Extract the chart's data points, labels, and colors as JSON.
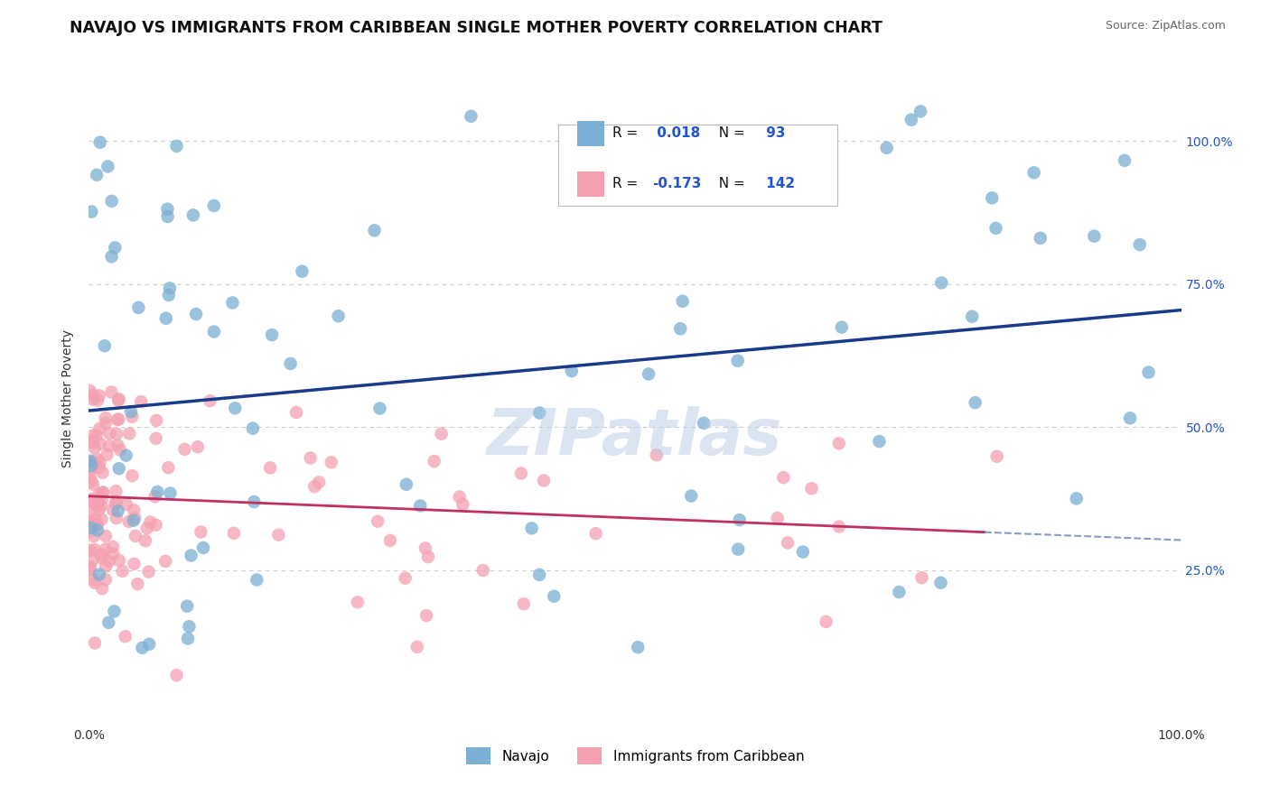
{
  "title": "NAVAJO VS IMMIGRANTS FROM CARIBBEAN SINGLE MOTHER POVERTY CORRELATION CHART",
  "source": "Source: ZipAtlas.com",
  "ylabel": "Single Mother Poverty",
  "xlim": [
    0,
    1
  ],
  "ylim": [
    -0.02,
    1.12
  ],
  "x_ticks": [
    0,
    0.25,
    0.5,
    0.75,
    1.0
  ],
  "x_ticklabels": [
    "0.0%",
    "",
    "",
    "",
    "100.0%"
  ],
  "y_ticks": [
    0.25,
    0.5,
    0.75,
    1.0
  ],
  "y_ticklabels": [
    "25.0%",
    "50.0%",
    "75.0%",
    "100.0%"
  ],
  "navajo_R": 0.018,
  "navajo_N": 93,
  "caribbean_R": -0.173,
  "caribbean_N": 142,
  "navajo_color": "#7BAFD4",
  "caribbean_color": "#F4A0B0",
  "trend_navajo_color": "#1A3A8C",
  "trend_caribbean_color": "#C03060",
  "trend_dashed_color": "#8899CC",
  "background_color": "#FFFFFF",
  "grid_color": "#CCCCCC",
  "watermark": "ZIPatlas",
  "watermark_color": "#B8CCE4",
  "legend_labels": [
    "Navajo",
    "Immigrants from Caribbean"
  ],
  "title_fontsize": 12.5,
  "label_fontsize": 10,
  "tick_fontsize": 10,
  "source_fontsize": 9,
  "navajo_seed": 7,
  "caribbean_seed": 99,
  "legend_R_color": "#000000",
  "legend_val_color": "#2255CC",
  "legend_N_label_color": "#000000"
}
